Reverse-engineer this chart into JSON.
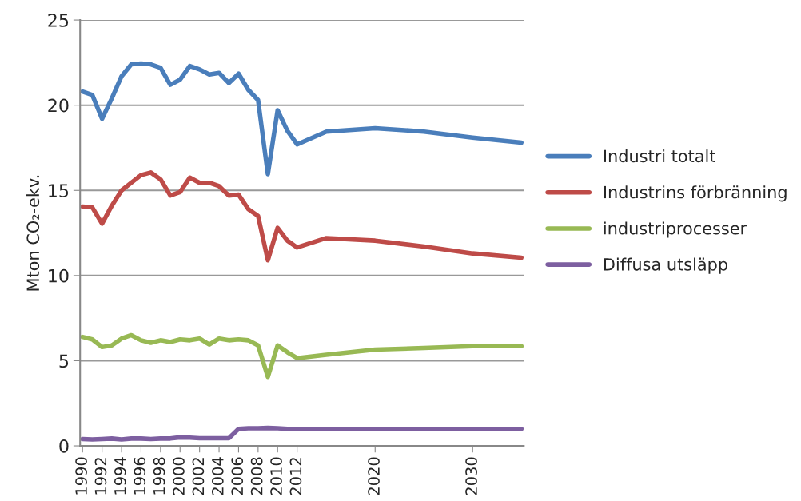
{
  "chart_data": {
    "type": "line",
    "ylabel": "Mton CO₂-ekv.",
    "ylim": [
      0,
      25
    ],
    "yticks": [
      0,
      5,
      10,
      15,
      20,
      25
    ],
    "xlim": [
      1989.75,
      2035.25
    ],
    "xticks": [
      1990,
      1992,
      1994,
      1996,
      1998,
      2000,
      2002,
      2004,
      2006,
      2008,
      2010,
      2012,
      2020,
      2030
    ],
    "grid": "y",
    "legend": "right",
    "marker": "none",
    "line_style": "solid",
    "x": [
      1990,
      1991,
      1992,
      1993,
      1994,
      1995,
      1996,
      1997,
      1998,
      1999,
      2000,
      2001,
      2002,
      2003,
      2004,
      2005,
      2006,
      2007,
      2008,
      2009,
      2010,
      2011,
      2012,
      2015,
      2020,
      2025,
      2030,
      2035
    ],
    "series": [
      {
        "name": "Industri totalt",
        "color": "#4a7ebb",
        "values": [
          20.8,
          20.6,
          19.2,
          20.4,
          21.7,
          22.4,
          22.45,
          22.4,
          22.2,
          21.2,
          21.5,
          22.3,
          22.1,
          21.8,
          21.9,
          21.3,
          21.85,
          20.9,
          20.3,
          15.95,
          19.7,
          18.5,
          17.7,
          18.45,
          18.65,
          18.45,
          18.1,
          17.8
        ]
      },
      {
        "name": "Industrins förbränning",
        "color": "#be4b48",
        "values": [
          14.05,
          14.0,
          13.05,
          14.1,
          15.0,
          15.45,
          15.9,
          16.05,
          15.65,
          14.7,
          14.9,
          15.75,
          15.45,
          15.45,
          15.25,
          14.7,
          14.75,
          13.9,
          13.5,
          10.9,
          12.8,
          12.05,
          11.65,
          12.2,
          12.05,
          11.7,
          11.3,
          11.05
        ]
      },
      {
        "name": "industriprocesser",
        "color": "#98b954",
        "values": [
          6.4,
          6.25,
          5.8,
          5.9,
          6.3,
          6.5,
          6.2,
          6.05,
          6.2,
          6.1,
          6.25,
          6.2,
          6.3,
          5.95,
          6.3,
          6.2,
          6.25,
          6.2,
          5.9,
          4.05,
          5.9,
          5.5,
          5.15,
          5.35,
          5.65,
          5.75,
          5.85,
          5.85
        ]
      },
      {
        "name": "Diffusa utsläpp",
        "color": "#7d5fa0",
        "values": [
          0.4,
          0.38,
          0.4,
          0.43,
          0.38,
          0.43,
          0.43,
          0.4,
          0.43,
          0.43,
          0.5,
          0.48,
          0.45,
          0.45,
          0.45,
          0.45,
          1.0,
          1.03,
          1.03,
          1.05,
          1.03,
          1.0,
          1.0,
          1.0,
          1.0,
          1.0,
          1.0,
          1.0
        ]
      }
    ]
  }
}
